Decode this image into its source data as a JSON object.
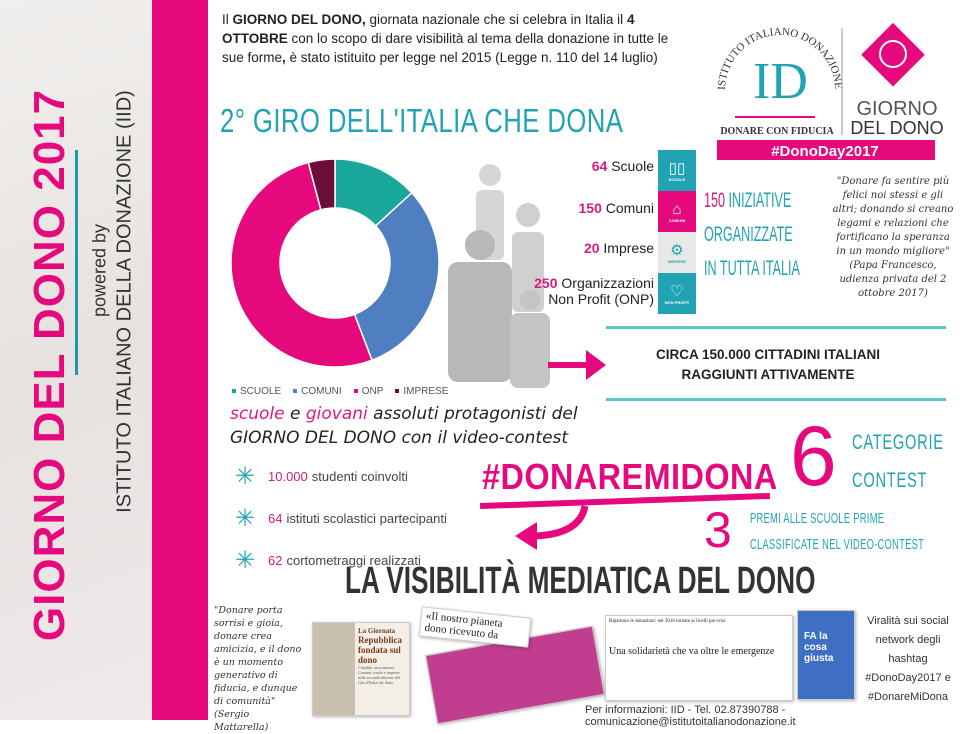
{
  "sidebar": {
    "title": "GIORNO DEL DONO 2017",
    "powered_by": "powered by",
    "institute": "ISTITUTO ITALIANO DELLA DONAZIONE (IID)"
  },
  "intro": {
    "p1": "Il ",
    "b1": "GIORNO DEL DONO,",
    "p2": " giornata nazionale che si celebra in Italia il ",
    "b2": "4 OTTOBRE",
    "p3": " con lo scopo di dare visibilità al tema della donazione in tutte le sue forme",
    "b3": ",",
    "p4": " è stato istituito per legge nel 2015 (Legge n. 110 del 14 luglio)"
  },
  "logo": {
    "iid_arc": "ISTITUTO ITALIANO DONAZIONE",
    "iid_mark": "ID",
    "iid_tagline": "DONARE CON FIDUCIA",
    "gdd_line1": "GIORNO",
    "gdd_line2": "DEL DONO",
    "hashtag": "#DonoDay2017"
  },
  "title": "2° GIRO DELL'ITALIA CHE DONA",
  "chart_data": {
    "type": "pie",
    "donut": true,
    "categories": [
      "SCUOLE",
      "COMUNI",
      "ONP",
      "IMPRESE"
    ],
    "values": [
      64,
      150,
      250,
      20
    ],
    "colors": [
      "#19a89a",
      "#4f7fc0",
      "#e6097e",
      "#6b0f3a"
    ],
    "legend": "bottom"
  },
  "stats": [
    {
      "num": "64",
      "label": "Scuole",
      "icon": "book-icon",
      "icon_label": "SCUOLE",
      "color": "#22a3b3"
    },
    {
      "num": "150",
      "label": "Comuni",
      "icon": "building-icon",
      "icon_label": "COMUNI",
      "color": "#e6097e"
    },
    {
      "num": "20",
      "label": "Imprese",
      "icon": "gears-icon",
      "icon_label": "IMPRESE",
      "color": "#e8e8e8"
    },
    {
      "num": "250",
      "label": "Organizzazioni",
      "label2": "Non Profit (ONP)",
      "icon": "heart-icon",
      "icon_label": "NON PROFIT",
      "color": "#22a3b3"
    }
  ],
  "iniziative": {
    "num": "150",
    "l1": " INIZIATIVE",
    "l2": "ORGANIZZATE",
    "l3": "IN TUTTA ITALIA"
  },
  "papa_quote": "\"Donare fa sentire più felici noi stessi e gli altri; donando si creano legami e relazioni che fortificano la speranza in un mondo migliore\" (Papa Francesco, udienza privata del 2 ottobre 2017)",
  "reach": {
    "l1": "CIRCA 150.000 CITTADINI ITALIANI",
    "l2": "RAGGIUNTI ATTIVAMENTE"
  },
  "contest": {
    "w1": "scuole",
    "w2": " e ",
    "w3": "giovani",
    "w4": " assoluti protagonisti del",
    "line2": "GIORNO DEL DONO con il video-contest"
  },
  "bullets": [
    {
      "num": "10.000",
      "text": " studenti coinvolti"
    },
    {
      "num": "64",
      "text": " istituti scolastici partecipanti"
    },
    {
      "num": "62",
      "text": " cortometraggi realizzati"
    }
  ],
  "hashtag": "#DONAREMIDONA",
  "categories": {
    "num": "6",
    "l1": "CATEGORIE",
    "l2": "CONTEST"
  },
  "prizes": {
    "num": "3",
    "l1": "PREMI ALLE SCUOLE PRIME",
    "l2": "CLASSIFICATE NEL VIDEO-CONTEST"
  },
  "media_title": "LA VISIBILITÀ MEDIATICA DEL DONO",
  "mattarella_quote": "\"Donare porta sorrisi e gioia, donare crea amicizia, e il dono è un momento generativo di fiducia, e dunque di comunità\" (Sergio Mattarella)",
  "press": {
    "a_head": "La Giornata",
    "a_title": "Repubblica fondata sul dono",
    "a_body": "Cittadini, associazioni, Comuni, scuole e imprese nella seconda edizione del Giro d'Italia che dona",
    "b_title": "«Il nostro pianeta dono ricevuto da con...",
    "c_head": "Ripartono le donazioni: nel 2016 tornate ai livelli pre-crisi",
    "c_title": "Una solidarietà che va oltre le emergenze",
    "d_title": "FA la cosa giusta"
  },
  "viral": "Viralità sui social network degli hashtag #DonoDay2017 e #DonareMiDona",
  "footer": "Per informazioni: IID - Tel. 02.87390788 - comunicazione@istitutoitalianodonazione.it"
}
